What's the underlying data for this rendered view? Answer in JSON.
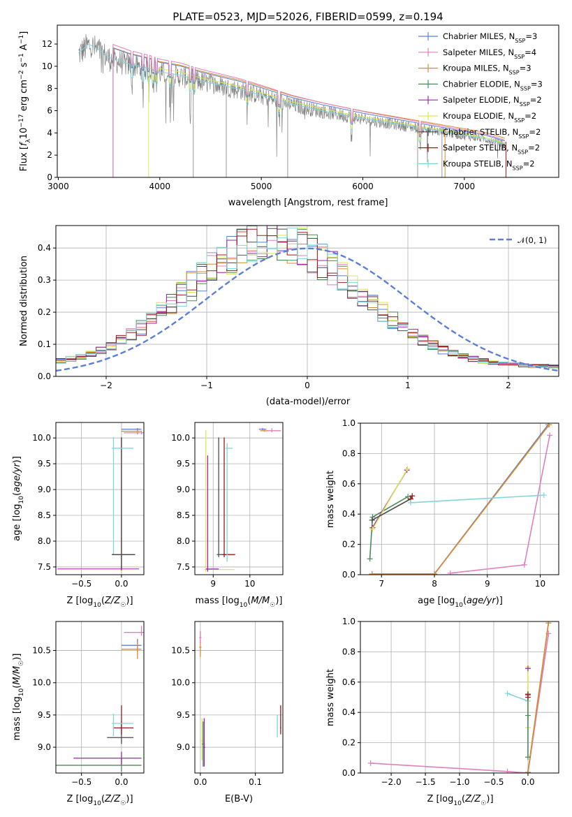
{
  "figure": {
    "title": "PLATE=0523, MJD=52026, FIBERID=0599, z=0.194"
  },
  "colors": {
    "Chabrier MILES": "#5b7fd6",
    "Salpeter MILES": "#e27fbd",
    "Kroupa MILES": "#de8c2a",
    "Chabrier ELODIE": "#4d8a5a",
    "Salpeter ELODIE": "#a31fb0",
    "Kroupa ELODIE": "#d9e85a",
    "Chabrier STELIB": "#4a4a4a",
    "Salpeter STELIB": "#9c1a1a",
    "Kroupa STELIB": "#7fd6d9",
    "data": "#808080",
    "normal": "#5b7fd6"
  },
  "chart_data": [
    {
      "id": "spectrum",
      "type": "line",
      "title": "PLATE=0523, MJD=52026, FIBERID=0599, z=0.194",
      "xlabel": "wavelength [Angstrom, rest frame]",
      "ylabel": "Flux [fλ10⁻¹⁷ erg cm⁻² s⁻¹ A⁻¹]",
      "xlim": [
        2990,
        7930
      ],
      "ylim": [
        0,
        13.7
      ],
      "xticks": [
        3000,
        4000,
        5000,
        6000,
        7000
      ],
      "yticks": [
        0,
        2,
        4,
        6,
        8,
        10,
        12
      ],
      "legend_position": "top-right",
      "legend": [
        {
          "text": "Chabrier MILES, N",
          "sub": "SSP",
          "tail": "=3",
          "series": "Chabrier MILES"
        },
        {
          "text": "Salpeter MILES, N",
          "sub": "SSP",
          "tail": "=4",
          "series": "Salpeter MILES"
        },
        {
          "text": "Kroupa MILES, N",
          "sub": "SSP",
          "tail": "=3",
          "series": "Kroupa MILES"
        },
        {
          "text": "Chabrier ELODIE, N",
          "sub": "SSP",
          "tail": "=3",
          "series": "Chabrier ELODIE"
        },
        {
          "text": "Salpeter ELODIE, N",
          "sub": "SSP",
          "tail": "=2",
          "series": "Salpeter ELODIE"
        },
        {
          "text": "Kroupa ELODIE, N",
          "sub": "SSP",
          "tail": "=2",
          "series": "Kroupa ELODIE"
        },
        {
          "text": "Chabrier STELIB, N",
          "sub": "SSP",
          "tail": "=2",
          "series": "Chabrier STELIB"
        },
        {
          "text": "Salpeter STELIB, N",
          "sub": "SSP",
          "tail": "=2",
          "series": "Salpeter STELIB"
        },
        {
          "text": "Kroupa STELIB, N",
          "sub": "SSP",
          "tail": "=2",
          "series": "Kroupa STELIB"
        }
      ],
      "continuum": {
        "x": [
          3200,
          3300,
          3400,
          3500,
          3600,
          3700,
          3800,
          3900,
          4000,
          4200,
          4400,
          4600,
          4800,
          5000,
          5300,
          5600,
          6000,
          6400,
          6800,
          7200,
          7400
        ],
        "y": [
          11.2,
          12.0,
          11.5,
          10.8,
          10.5,
          10.2,
          10.0,
          9.8,
          9.5,
          9.2,
          8.7,
          8.3,
          7.9,
          7.4,
          6.6,
          6.0,
          5.3,
          4.7,
          4.1,
          3.5,
          3.0
        ]
      }
    },
    {
      "id": "residuals",
      "type": "bar",
      "xlabel": "(data-model)/error",
      "ylabel": "Normed distribution",
      "xlim": [
        -2.5,
        2.5
      ],
      "ylim": [
        0,
        0.47
      ],
      "xticks": [
        -2,
        -1,
        0,
        1,
        2
      ],
      "yticks": [
        0.0,
        0.1,
        0.2,
        0.3,
        0.4
      ],
      "legend_position": "top-right",
      "normal_label": "𝒩(0, 1)",
      "bin_edges_start": -2.5,
      "bin_width": 0.1
    },
    {
      "id": "age-vs-Z",
      "type": "scatter",
      "xlabel": "Z [log10(Z/Z☉)]",
      "ylabel": "age  [log10(age/yr)]",
      "xlim": [
        -0.82,
        0.28
      ],
      "ylim": [
        7.35,
        10.3
      ],
      "xticks": [
        -0.5,
        0.0
      ],
      "yticks": [
        7.5,
        8.0,
        8.5,
        9.0,
        9.5,
        10.0
      ]
    },
    {
      "id": "age-vs-mass",
      "type": "scatter",
      "xlabel": "mass [log10(M/M☉)]",
      "xlim": [
        8.5,
        10.9
      ],
      "ylim": [
        7.35,
        10.3
      ],
      "xticks": [
        9,
        10
      ],
      "yticks": [
        7.5,
        8.0,
        8.5,
        9.0,
        9.5,
        10.0
      ]
    },
    {
      "id": "weight-vs-age",
      "type": "line",
      "xlabel": "age  [log10(age/yr)]",
      "ylabel": "mass weight",
      "xlim": [
        6.6,
        10.35
      ],
      "ylim": [
        0,
        1
      ],
      "xticks": [
        7,
        8,
        9,
        10
      ],
      "yticks": [
        0.0,
        0.2,
        0.4,
        0.6,
        0.8,
        1.0
      ],
      "series": [
        {
          "name": "Chabrier MILES",
          "x": [
            6.82,
            8.0,
            10.15
          ],
          "y": [
            0.005,
            0.005,
            0.99
          ]
        },
        {
          "name": "Salpeter MILES",
          "x": [
            8.3,
            9.7,
            10.18
          ],
          "y": [
            0.01,
            0.065,
            0.92
          ]
        },
        {
          "name": "Kroupa MILES",
          "x": [
            6.82,
            8.0,
            10.17
          ],
          "y": [
            0.003,
            0.003,
            0.99
          ]
        },
        {
          "name": "Chabrier ELODIE",
          "x": [
            6.78,
            6.83,
            7.5
          ],
          "y": [
            0.105,
            0.38,
            0.515
          ]
        },
        {
          "name": "Salpeter ELODIE",
          "x": [
            6.83,
            7.48
          ],
          "y": [
            0.31,
            0.69
          ]
        },
        {
          "name": "Kroupa ELODIE",
          "x": [
            6.83,
            7.49
          ],
          "y": [
            0.3,
            0.7
          ]
        },
        {
          "name": "Chabrier STELIB",
          "x": [
            6.82,
            7.55
          ],
          "y": [
            0.36,
            0.5
          ]
        },
        {
          "name": "Salpeter STELIB",
          "x": [
            7.55,
            7.58
          ],
          "y": [
            0.5,
            0.52
          ]
        },
        {
          "name": "Kroupa STELIB",
          "x": [
            7.55,
            10.07
          ],
          "y": [
            0.475,
            0.525
          ]
        }
      ]
    },
    {
      "id": "mass-vs-Z",
      "type": "scatter",
      "xlabel": "Z [log10(Z/Z☉)]",
      "ylabel": "mass [log10(M/M☉)]",
      "xlim": [
        -0.82,
        0.28
      ],
      "ylim": [
        8.6,
        10.95
      ],
      "xticks": [
        -0.5,
        0.0
      ],
      "yticks": [
        9.0,
        9.5,
        10.0,
        10.5
      ]
    },
    {
      "id": "mass-vs-EBV",
      "type": "scatter",
      "xlabel": "E(B-V)",
      "xlim": [
        -0.01,
        0.15
      ],
      "ylim": [
        8.6,
        10.95
      ],
      "xticks": [
        0.0,
        0.1
      ],
      "yticks": [
        9.0,
        9.5,
        10.0,
        10.5
      ]
    },
    {
      "id": "weight-vs-Z",
      "type": "line",
      "xlabel": "Z [log10(Z/Z☉)]",
      "ylabel": "mass weight",
      "xlim": [
        -2.45,
        0.45
      ],
      "ylim": [
        0,
        1
      ],
      "xticks": [
        -2.0,
        -1.5,
        -1.0,
        -0.5,
        0.0
      ],
      "yticks": [
        0.0,
        0.2,
        0.4,
        0.6,
        0.8,
        1.0
      ],
      "series": [
        {
          "name": "Salpeter MILES",
          "x": [
            -2.3,
            -0.3,
            0.0,
            0.3
          ],
          "y": [
            0.065,
            0.01,
            0.0,
            0.92
          ]
        },
        {
          "name": "Chabrier MILES",
          "x": [
            0.0,
            0.3
          ],
          "y": [
            0.005,
            0.99
          ]
        },
        {
          "name": "Kroupa MILES",
          "x": [
            0.0,
            0.3
          ],
          "y": [
            0.003,
            0.99
          ]
        },
        {
          "name": "Kroupa STELIB",
          "x": [
            -0.3,
            0.0
          ],
          "y": [
            0.525,
            0.475
          ]
        },
        {
          "name": "Kroupa ELODIE",
          "x": [
            0.0,
            0.0
          ],
          "y": [
            0.3,
            0.7
          ]
        },
        {
          "name": "Chabrier ELODIE",
          "x": [
            0.0,
            0.0
          ],
          "y": [
            0.105,
            0.515
          ]
        }
      ]
    }
  ]
}
